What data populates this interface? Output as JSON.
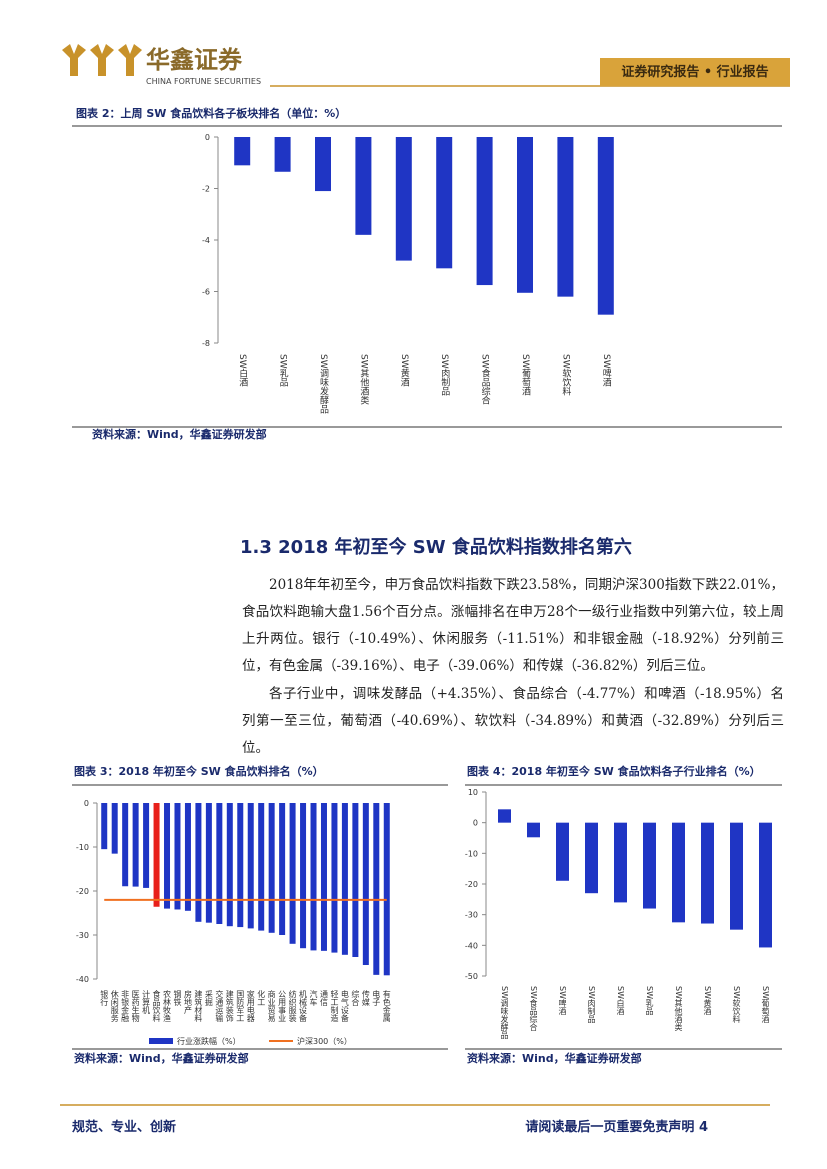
{
  "header": {
    "brand": "华鑫证券",
    "brand_en": "CHINA FORTUNE SECURITIES",
    "report_type": "证券研究报告 • 行业报告"
  },
  "chart_data": [
    {
      "type": "bar",
      "title": "图表 2：上周 SW 食品饮料各子板块排名（单位：%）",
      "categories": [
        "SW白酒",
        "SW乳品",
        "SW调味发酵品",
        "SW其他酒类",
        "SW黄酒",
        "SW肉制品",
        "SW食品综合",
        "SW葡萄酒",
        "SW软饮料",
        "SW啤酒"
      ],
      "series": [
        {
          "color": "#1f35c4",
          "values": [
            -1.1,
            -1.35,
            -2.1,
            -3.8,
            -4.8,
            -5.1,
            -5.75,
            -6.05,
            -6.2,
            -6.9
          ]
        }
      ],
      "ylim": [
        -8,
        0
      ],
      "yticks": [
        0,
        -2,
        -4,
        -6,
        -8
      ],
      "source": "资料来源：Wind，华鑫证券研发部"
    },
    {
      "type": "bar",
      "title": "图表 3：2018 年初至今 SW 食品饮料排名（%）",
      "categories": [
        "银行",
        "休闲服务",
        "非银金融",
        "医药生物",
        "计算机",
        "食品饮料",
        "农林牧渔",
        "钢铁",
        "房地产",
        "建筑材料",
        "采掘",
        "交通运输",
        "建筑装饰",
        "国防军工",
        "家用电器",
        "化工",
        "商业贸易",
        "公用事业",
        "纺织服装",
        "机械设备",
        "汽车",
        "通信",
        "轻工制造",
        "电气设备",
        "综合",
        "传媒",
        "电子",
        "有色金属"
      ],
      "series": [
        {
          "name": "行业涨跌幅（%）",
          "color": "#1f35c4",
          "colors": [
            "#1f35c4",
            "#1f35c4",
            "#1f35c4",
            "#1f35c4",
            "#1f35c4",
            "#e8201a",
            "#1f35c4",
            "#1f35c4",
            "#1f35c4",
            "#1f35c4",
            "#1f35c4",
            "#1f35c4",
            "#1f35c4",
            "#1f35c4",
            "#1f35c4",
            "#1f35c4",
            "#1f35c4",
            "#1f35c4",
            "#1f35c4",
            "#1f35c4",
            "#1f35c4",
            "#1f35c4",
            "#1f35c4",
            "#1f35c4",
            "#1f35c4",
            "#1f35c4",
            "#1f35c4",
            "#1f35c4"
          ],
          "values": [
            -10.49,
            -11.51,
            -18.92,
            -19.0,
            -19.3,
            -23.58,
            -24.0,
            -24.2,
            -24.5,
            -27.0,
            -27.2,
            -27.5,
            -28.0,
            -28.2,
            -28.5,
            -29.0,
            -29.5,
            -30.0,
            -32.0,
            -33.0,
            -33.5,
            -33.6,
            -34.0,
            -34.5,
            -35.0,
            -36.82,
            -39.06,
            -39.16
          ]
        },
        {
          "name": "沪深300（%）",
          "type": "line",
          "color": "#f07020",
          "values": [
            -22.01,
            -22.01,
            -22.01,
            -22.01,
            -22.01,
            -22.01,
            -22.01,
            -22.01,
            -22.01,
            -22.01,
            -22.01,
            -22.01,
            -22.01,
            -22.01,
            -22.01,
            -22.01,
            -22.01,
            -22.01,
            -22.01,
            -22.01,
            -22.01,
            -22.01,
            -22.01,
            -22.01,
            -22.01,
            -22.01,
            -22.01,
            -22.01
          ]
        }
      ],
      "ylim": [
        -40,
        0
      ],
      "yticks": [
        0,
        -10,
        -20,
        -30,
        -40
      ],
      "legend": "bottom",
      "source": "资料来源：Wind，华鑫证券研发部"
    },
    {
      "type": "bar",
      "title": "图表 4：2018 年初至今 SW 食品饮料各子行业排名（%）",
      "categories": [
        "SW调味发酵品",
        "SW食品综合",
        "SW啤酒",
        "SW肉制品",
        "SW白酒",
        "SW乳品",
        "SW其他酒类",
        "SW黄酒",
        "SW软饮料",
        "SW葡萄酒"
      ],
      "series": [
        {
          "color": "#1f35c4",
          "values": [
            4.35,
            -4.77,
            -18.95,
            -23.0,
            -26.0,
            -28.0,
            -32.5,
            -32.89,
            -34.89,
            -40.69
          ]
        }
      ],
      "ylim": [
        -50,
        10
      ],
      "yticks": [
        10,
        0,
        -10,
        -20,
        -30,
        -40,
        -50
      ],
      "source": "资料来源：Wind，华鑫证券研发部"
    }
  ],
  "section": {
    "heading": "1.3 2018 年初至今 SW 食品饮料指数排名第六",
    "paragraphs": [
      "2018年年初至今，申万食品饮料指数下跌23.58%，同期沪深300指数下跌22.01%，食品饮料跑输大盘1.56个百分点。涨幅排名在申万28个一级行业指数中列第六位，较上周上升两位。银行（-10.49%）、休闲服务（-11.51%）和非银金融（-18.92%）分列前三位，有色金属（-39.16%）、电子（-39.06%）和传媒（-36.82%）列后三位。",
      "各子行业中，调味发酵品（+4.35%）、食品综合（-4.77%）和啤酒（-18.95%）名列第一至三位，葡萄酒（-40.69%）、软饮料（-34.89%）和黄酒（-32.89%）分列后三位。"
    ]
  },
  "footer": {
    "motto": "规范、专业、创新",
    "notice": "请阅读最后一页重要免责声明 4"
  }
}
